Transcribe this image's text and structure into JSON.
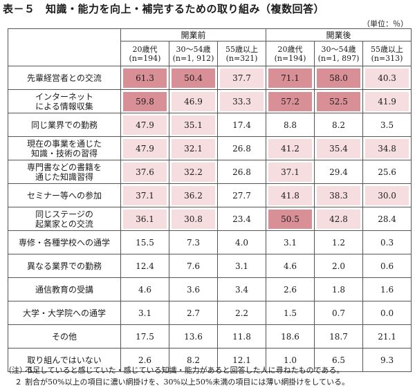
{
  "title": "表－５　知識・能力を向上・補完するための取り組み（複数回答）",
  "unit": "（単位：％）",
  "groups": [
    "開業前",
    "開業後"
  ],
  "subheaders": [
    {
      "name": "20歳代",
      "n": "(n=194)"
    },
    {
      "name": "30～54歳",
      "n": "(n=1, 912)"
    },
    {
      "name": "55歳以上",
      "n": "(n=321)"
    },
    {
      "name": "20歳代",
      "n": "(n=194)"
    },
    {
      "name": "30～54歳",
      "n": "(n=1, 897)"
    },
    {
      "name": "55歳以上",
      "n": "(n=313)"
    }
  ],
  "rows": [
    {
      "label": "先輩経営者との交流",
      "align": "left",
      "values": [
        "61.3",
        "50.4",
        "37.7",
        "71.1",
        "58.0",
        "40.3"
      ],
      "shade": [
        "dark",
        "dark",
        "light",
        "dark",
        "dark",
        "light"
      ]
    },
    {
      "label": "インターネット\nによる情報収集",
      "align": "left",
      "values": [
        "59.8",
        "46.9",
        "33.3",
        "57.2",
        "52.5",
        "41.9"
      ],
      "shade": [
        "dark",
        "light",
        "light",
        "dark",
        "dark",
        "light"
      ]
    },
    {
      "label": "同じ業界での勤務",
      "align": "left",
      "values": [
        "47.9",
        "35.1",
        "17.4",
        "8.8",
        "8.2",
        "3.5"
      ],
      "shade": [
        "light",
        "light",
        "none",
        "none",
        "none",
        "none"
      ]
    },
    {
      "label": "現在の事業を通じた\n知識・技術の習得",
      "align": "left",
      "values": [
        "47.9",
        "32.1",
        "26.8",
        "41.2",
        "35.4",
        "34.8"
      ],
      "shade": [
        "light",
        "light",
        "none",
        "light",
        "light",
        "light"
      ]
    },
    {
      "label": "専門書などの書籍を\n通じた知識習得",
      "align": "left",
      "values": [
        "37.6",
        "32.2",
        "26.8",
        "37.1",
        "29.4",
        "25.6"
      ],
      "shade": [
        "light",
        "light",
        "none",
        "light",
        "none",
        "none"
      ]
    },
    {
      "label": "セミナー等への参加",
      "align": "left",
      "values": [
        "37.1",
        "36.2",
        "27.7",
        "41.8",
        "38.3",
        "30.0"
      ],
      "shade": [
        "light",
        "light",
        "none",
        "light",
        "light",
        "light"
      ]
    },
    {
      "label": "同じステージの\n起業家との交流",
      "align": "left",
      "values": [
        "36.1",
        "30.8",
        "23.4",
        "50.5",
        "42.8",
        "28.4"
      ],
      "shade": [
        "light",
        "light",
        "none",
        "dark",
        "light",
        "none"
      ]
    },
    {
      "label": "専修・各種学校への通学",
      "align": "center",
      "values": [
        "15.5",
        "7.3",
        "4.0",
        "3.1",
        "1.2",
        "0.3"
      ],
      "shade": [
        "none",
        "none",
        "none",
        "none",
        "none",
        "none"
      ]
    },
    {
      "label": "異なる業界での勤務",
      "align": "center",
      "values": [
        "12.4",
        "7.6",
        "3.1",
        "4.6",
        "2.0",
        "0.6"
      ],
      "shade": [
        "none",
        "none",
        "none",
        "none",
        "none",
        "none"
      ]
    },
    {
      "label": "通信教育の受講",
      "align": "center",
      "values": [
        "4.6",
        "3.6",
        "3.4",
        "2.6",
        "1.8",
        "1.6"
      ],
      "shade": [
        "none",
        "none",
        "none",
        "none",
        "none",
        "none"
      ]
    },
    {
      "label": "大学・大学院への通学",
      "align": "center",
      "values": [
        "3.1",
        "2.7",
        "2.2",
        "1.5",
        "0.7",
        "0.0"
      ],
      "shade": [
        "none",
        "none",
        "none",
        "none",
        "none",
        "none"
      ]
    },
    {
      "label": "その他",
      "align": "center",
      "values": [
        "17.5",
        "13.6",
        "11.8",
        "18.6",
        "18.7",
        "21.1"
      ],
      "shade": [
        "none",
        "none",
        "none",
        "none",
        "none",
        "none"
      ]
    },
    {
      "label": "取り組んではいない",
      "align": "center",
      "values": [
        "2.6",
        "8.2",
        "12.1",
        "1.0",
        "6.5",
        "9.3"
      ],
      "shade": [
        "none",
        "none",
        "none",
        "none",
        "none",
        "none"
      ]
    }
  ],
  "notes": [
    {
      "tag": "（注）１",
      "text": "不足していると感じていた・感じている知識・能力があると回答した人に尋ねたものである。"
    },
    {
      "tag": "２",
      "text": "割合が50%以上の項目に濃い網掛けを、30%以上50%未満の項目には薄い網掛けをしている。"
    }
  ],
  "colors": {
    "dark_shade": "#d98f96",
    "light_shade": "#f6dde0",
    "border": "#555555"
  }
}
